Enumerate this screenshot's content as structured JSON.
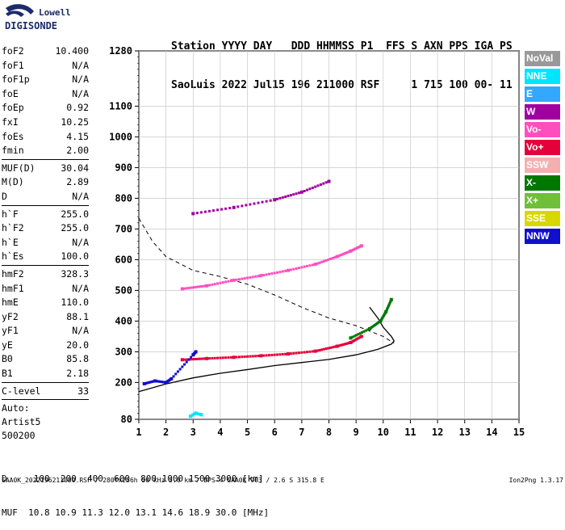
{
  "logo": {
    "brand_top": "Lowell",
    "brand_bottom": "DIGISONDE"
  },
  "header": {
    "line1": "Station YYYY DAY   DDD HHMMSS P1  FFS S AXN PPS IGA PS",
    "line2": "SaoLuis 2022 Jul15 196 211000 RSF     1 715 100 00- 11"
  },
  "params": [
    {
      "k": "foF2",
      "v": "10.400"
    },
    {
      "k": "foF1",
      "v": "N/A"
    },
    {
      "k": "foF1p",
      "v": "N/A"
    },
    {
      "k": "foE",
      "v": "N/A"
    },
    {
      "k": "foEp",
      "v": "0.92"
    },
    {
      "k": "fxI",
      "v": "10.25"
    },
    {
      "k": "foEs",
      "v": "4.15"
    },
    {
      "k": "fmin",
      "v": "2.00"
    },
    {
      "k": "MUF(D)",
      "v": "30.04"
    },
    {
      "k": "M(D)",
      "v": "2.89"
    },
    {
      "k": "D",
      "v": "N/A"
    },
    {
      "k": "h`F",
      "v": "255.0"
    },
    {
      "k": "h`F2",
      "v": "255.0"
    },
    {
      "k": "h`E",
      "v": "N/A"
    },
    {
      "k": "h`Es",
      "v": "100.0"
    },
    {
      "k": "hmF2",
      "v": "328.3"
    },
    {
      "k": "hmF1",
      "v": "N/A"
    },
    {
      "k": "hmE",
      "v": "110.0"
    },
    {
      "k": "yF2",
      "v": "88.1"
    },
    {
      "k": "yF1",
      "v": "N/A"
    },
    {
      "k": "yE",
      "v": "20.0"
    },
    {
      "k": "B0",
      "v": "85.8"
    },
    {
      "k": "B1",
      "v": "2.18"
    },
    {
      "k": "C-level",
      "v": "33"
    }
  ],
  "auto": {
    "line1": "Auto:",
    "line2": "Artist5",
    "line3": "500200"
  },
  "legend": [
    {
      "label": "NoVal",
      "color": "#999999"
    },
    {
      "label": "NNE",
      "color": "#00e5ff"
    },
    {
      "label": "E",
      "color": "#33a8ff"
    },
    {
      "label": "W",
      "color": "#a000a0"
    },
    {
      "label": "Vo-",
      "color": "#ff4fbf"
    },
    {
      "label": "Vo+",
      "color": "#e6003a"
    },
    {
      "label": "SSW",
      "color": "#f2b0b0"
    },
    {
      "label": "X-",
      "color": "#007800"
    },
    {
      "label": "X+",
      "color": "#6fbf3a"
    },
    {
      "label": "SSE",
      "color": "#d8d800"
    },
    {
      "label": "NNW",
      "color": "#1010cc"
    }
  ],
  "bottom_table": {
    "line1": "D     100  200  400  600  800 1000 1500 3000 [km]",
    "line2": "MUF  10.8 10.9 11.3 12.0 13.1 14.6 18.9 30.0 [MHz]"
  },
  "footer": {
    "left": "SAA0K_2022196211000.RSF / 280fx256h 50 kHz 5.0 km / DPS-4 SAA0K 903 / 2.6 S 315.8 E",
    "right": "Ion2Png 1.3.17"
  },
  "chart_data": {
    "type": "scatter",
    "title": "",
    "xlabel": "",
    "ylabel": "",
    "xlim": [
      1,
      15
    ],
    "ylim": [
      80,
      1280
    ],
    "x_ticks": [
      1,
      2,
      3,
      4,
      5,
      6,
      7,
      8,
      9,
      10,
      11,
      12,
      13,
      14,
      15
    ],
    "y_ticks": [
      80,
      200,
      300,
      400,
      500,
      600,
      700,
      800,
      900,
      1000,
      1100,
      1280
    ],
    "grid": true,
    "series": [
      {
        "name": "Vo+",
        "color": "#e6003a",
        "style": "points",
        "x": [
          2.6,
          3.5,
          4.5,
          5.5,
          6.5,
          7.5,
          8.3,
          8.8,
          9.2
        ],
        "y": [
          274,
          278,
          282,
          287,
          293,
          302,
          318,
          330,
          350
        ]
      },
      {
        "name": "Vo-",
        "color": "#ff4fbf",
        "style": "points",
        "x": [
          2.6,
          3.5,
          4.5,
          5.5,
          6.5,
          7.5,
          8.3,
          8.8,
          9.2
        ],
        "y": [
          505,
          515,
          533,
          548,
          565,
          585,
          610,
          628,
          645
        ]
      },
      {
        "name": "X-",
        "color": "#007800",
        "style": "points",
        "x": [
          8.8,
          9.5,
          9.9,
          10.1,
          10.3
        ],
        "y": [
          345,
          375,
          400,
          430,
          470
        ]
      },
      {
        "name": "W",
        "color": "#a000a0",
        "style": "points",
        "x": [
          3.0,
          4.5,
          6.0,
          7.0,
          8.0
        ],
        "y": [
          750,
          770,
          795,
          820,
          855
        ]
      },
      {
        "name": "NNE",
        "color": "#00e5ff",
        "style": "points",
        "x": [
          2.9,
          3.1,
          3.3
        ],
        "y": [
          90,
          100,
          95
        ]
      },
      {
        "name": "NNW",
        "color": "#1010cc",
        "style": "points",
        "x": [
          1.2,
          1.6,
          2.0,
          2.2,
          3.0,
          3.1
        ],
        "y": [
          196,
          205,
          200,
          212,
          290,
          300
        ]
      }
    ],
    "profile": {
      "solid": {
        "x": [
          1.0,
          2.0,
          3.0,
          4.0,
          5.0,
          6.0,
          7.0,
          8.0,
          9.0,
          9.8,
          10.3,
          10.4,
          10.3,
          10.0,
          9.8,
          9.5
        ],
        "y": [
          170,
          195,
          215,
          230,
          242,
          255,
          265,
          275,
          290,
          308,
          325,
          335,
          350,
          380,
          410,
          445
        ]
      },
      "dashed": {
        "x": [
          1.0,
          1.5,
          2.0,
          3.0,
          4.0,
          5.0,
          6.0,
          7.0,
          8.0,
          9.0,
          10.0,
          10.4
        ],
        "y": [
          735,
          660,
          610,
          565,
          545,
          520,
          485,
          445,
          410,
          385,
          350,
          328
        ]
      }
    }
  }
}
